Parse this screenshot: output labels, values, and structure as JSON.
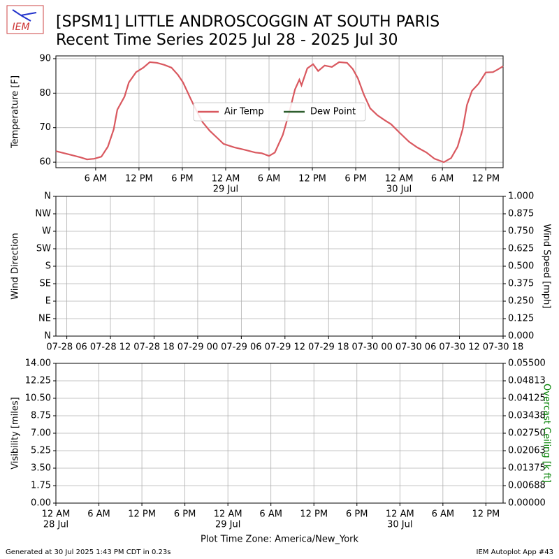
{
  "header": {
    "logo": "IEM",
    "title": "[SPSM1] LITTLE ANDROSCOGGIN  AT SOUTH PARIS",
    "subtitle": "Recent Time Series 2025 Jul 28 - 2025 Jul 30"
  },
  "footer": {
    "left": "Generated at 30 Jul 2025 1:43 PM CDT in 0.23s",
    "right": "IEM Autoplot App #43"
  },
  "chart_data": [
    {
      "type": "line",
      "ylabel": "Temperature [F]",
      "grid": true,
      "legend": "center",
      "xlim": [
        0.5,
        62.4
      ],
      "ylim": [
        58.4,
        90.8
      ],
      "yticks": [
        60,
        70,
        80,
        90
      ],
      "xticks": [
        {
          "value": 6,
          "label": "6 AM"
        },
        {
          "value": 12,
          "label": "12 PM"
        },
        {
          "value": 18,
          "label": "6 PM"
        },
        {
          "value": 24,
          "label": "12 AM",
          "sublabel": "29 Jul"
        },
        {
          "value": 30,
          "label": "6 AM"
        },
        {
          "value": 36,
          "label": "12 PM"
        },
        {
          "value": 42,
          "label": "6 PM"
        },
        {
          "value": 48,
          "label": "12 AM",
          "sublabel": "30 Jul"
        },
        {
          "value": 54,
          "label": "6 AM"
        },
        {
          "value": 60,
          "label": "12 PM"
        }
      ],
      "x": [
        0.5,
        2.4,
        3.9,
        4.8,
        5.8,
        6.8,
        7.7,
        8.5,
        9.0,
        10.0,
        10.6,
        11.6,
        12.6,
        13.5,
        14.5,
        15.5,
        16.5,
        17.4,
        18.1,
        19.1,
        19.8,
        20.8,
        21.8,
        22.7,
        23.7,
        25.2,
        26.6,
        28.1,
        29.0,
        30.0,
        30.8,
        31.9,
        32.7,
        33.6,
        34.2,
        34.5,
        35.3,
        36.1,
        36.8,
        37.7,
        38.7,
        39.7,
        40.8,
        41.6,
        42.3,
        43.1,
        44.0,
        45.0,
        46.0,
        46.9,
        48.1,
        49.4,
        50.5,
        51.8,
        52.9,
        54.2,
        55.2,
        56.1,
        56.8,
        57.4,
        58.1,
        59.0,
        60.0,
        61.0,
        61.6,
        62.4
      ],
      "series": [
        {
          "name": "Air Temp",
          "color": "#d9585f",
          "values": [
            63.2,
            62.2,
            61.4,
            60.8,
            61,
            61.6,
            64.5,
            69.5,
            75.2,
            79,
            83.1,
            86.1,
            87.4,
            89,
            88.8,
            88.2,
            87.4,
            85.3,
            83.1,
            78.6,
            75.6,
            71.6,
            69.1,
            67.3,
            65.3,
            64.3,
            63.6,
            62.8,
            62.6,
            61.8,
            62.8,
            67.9,
            73.6,
            81.1,
            83.9,
            82.3,
            87.2,
            88.4,
            86.4,
            88,
            87.6,
            89,
            88.8,
            87,
            84.3,
            79.7,
            75.6,
            73.6,
            72.2,
            71,
            68.5,
            65.9,
            64.3,
            62.8,
            61,
            60,
            61.2,
            64.5,
            69.5,
            76.6,
            80.7,
            82.7,
            86,
            86.1,
            86.8,
            87.8
          ]
        },
        {
          "name": "Dew Point",
          "color": "#2e5e2e",
          "values": [
            null,
            null,
            null,
            null,
            null,
            null,
            null,
            null,
            null,
            null,
            null,
            null,
            null,
            null,
            null,
            null,
            null,
            null,
            null,
            null,
            null,
            null,
            null,
            null,
            null,
            null,
            null,
            null,
            null,
            null,
            null,
            null,
            null,
            null,
            null,
            null,
            null,
            null,
            null,
            null,
            null,
            null,
            null,
            null,
            null,
            null,
            null,
            null,
            null,
            null,
            null,
            null,
            null,
            null,
            null,
            null,
            null,
            null,
            null,
            null,
            null,
            null,
            null,
            null,
            null,
            null
          ]
        }
      ]
    },
    {
      "type": "line",
      "ylabel": "Wind Direction",
      "y2label": "Wind Speed [mph]",
      "grid": true,
      "xlim": [
        4.5,
        66
      ],
      "ylim": [
        0,
        360
      ],
      "y2lim": [
        0,
        1
      ],
      "xticks": [
        {
          "value": 6,
          "label": "07-28 06"
        },
        {
          "value": 12,
          "label": "07-28 12"
        },
        {
          "value": 18,
          "label": "07-28 18"
        },
        {
          "value": 24,
          "label": "07-29 00"
        },
        {
          "value": 30,
          "label": "07-29 06"
        },
        {
          "value": 36,
          "label": "07-29 12"
        },
        {
          "value": 42,
          "label": "07-29 18"
        },
        {
          "value": 48,
          "label": "07-30 00"
        },
        {
          "value": 54,
          "label": "07-30 06"
        },
        {
          "value": 60,
          "label": "07-30 12"
        },
        {
          "value": 66,
          "label": "07-30 18"
        }
      ],
      "yticks": [
        {
          "value": 0,
          "label": "N"
        },
        {
          "value": 45,
          "label": "NE"
        },
        {
          "value": 90,
          "label": "E"
        },
        {
          "value": 135,
          "label": "SE"
        },
        {
          "value": 180,
          "label": "S"
        },
        {
          "value": 225,
          "label": "SW"
        },
        {
          "value": 270,
          "label": "W"
        },
        {
          "value": 315,
          "label": "NW"
        },
        {
          "value": 360,
          "label": "N"
        }
      ],
      "y2ticks": [
        {
          "value": 0,
          "label": "0.000"
        },
        {
          "value": 0.125,
          "label": "0.125"
        },
        {
          "value": 0.25,
          "label": "0.250"
        },
        {
          "value": 0.375,
          "label": "0.375"
        },
        {
          "value": 0.5,
          "label": "0.500"
        },
        {
          "value": 0.625,
          "label": "0.625"
        },
        {
          "value": 0.75,
          "label": "0.750"
        },
        {
          "value": 0.875,
          "label": "0.875"
        },
        {
          "value": 1,
          "label": "1.000"
        }
      ]
    },
    {
      "type": "line",
      "ylabel": "Visibility [miles]",
      "y2label": "Overcast Ceiling [k ft]",
      "y2label_color": "#008000",
      "xlabel": "Plot Time Zone: America/New_York",
      "grid": true,
      "xlim": [
        0,
        62.4
      ],
      "ylim": [
        0,
        14
      ],
      "y2lim": [
        0,
        0.055
      ],
      "xticks": [
        {
          "value": 0,
          "label": "12 AM",
          "sublabel": "28 Jul"
        },
        {
          "value": 6,
          "label": "6 AM"
        },
        {
          "value": 12,
          "label": "12 PM"
        },
        {
          "value": 18,
          "label": "6 PM"
        },
        {
          "value": 24,
          "label": "12 AM",
          "sublabel": "29 Jul"
        },
        {
          "value": 30,
          "label": "6 AM"
        },
        {
          "value": 36,
          "label": "12 PM"
        },
        {
          "value": 42,
          "label": "6 PM"
        },
        {
          "value": 48,
          "label": "12 AM",
          "sublabel": "30 Jul"
        },
        {
          "value": 54,
          "label": "6 AM"
        },
        {
          "value": 60,
          "label": "12 PM"
        }
      ],
      "yticks": [
        {
          "value": 0,
          "label": "0.00"
        },
        {
          "value": 1.75,
          "label": "1.75"
        },
        {
          "value": 3.5,
          "label": "3.50"
        },
        {
          "value": 5.25,
          "label": "5.25"
        },
        {
          "value": 7,
          "label": "7.00"
        },
        {
          "value": 8.75,
          "label": "8.75"
        },
        {
          "value": 10.5,
          "label": "10.50"
        },
        {
          "value": 12.25,
          "label": "12.25"
        },
        {
          "value": 14,
          "label": "14.00"
        }
      ],
      "y2ticks": [
        {
          "value": 0,
          "label": "0.00000"
        },
        {
          "value": 0.006875,
          "label": "0.00688"
        },
        {
          "value": 0.01375,
          "label": "0.01375"
        },
        {
          "value": 0.020625,
          "label": "0.02063"
        },
        {
          "value": 0.0275,
          "label": "0.02750"
        },
        {
          "value": 0.034375,
          "label": "0.03438"
        },
        {
          "value": 0.04125,
          "label": "0.04125"
        },
        {
          "value": 0.048125,
          "label": "0.04813"
        },
        {
          "value": 0.055,
          "label": "0.05500"
        }
      ]
    }
  ]
}
